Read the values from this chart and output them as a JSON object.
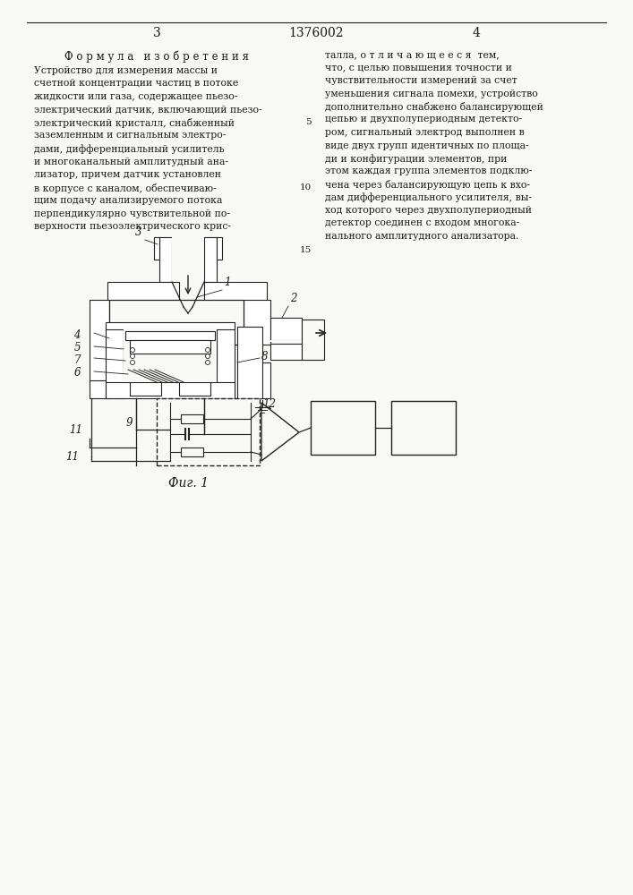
{
  "title_num_left": "3",
  "title_num_center": "1376002",
  "title_num_right": "4",
  "header_left": "Ф о р м у л а   и з о б р е т е н и я",
  "text_left_lines": [
    "Устройство для измерения массы и",
    "счетной концентрации частиц в потоке",
    "жидкости или газа, содержащее пьезо-",
    "электрический датчик, включающий пьезо-",
    "электрический кристалл, снабженный",
    "заземленным и сигнальным электро-",
    "дами, дифференциальный усилитель",
    "и многоканальный амплитудный ана-",
    "лизатор, причем датчик установлен",
    "в корпусе с каналом, обеспечиваю-",
    "щим подачу анализируемого потока",
    "перпендикулярно чувствительной по-",
    "верхности пьезоэлектрического крис-"
  ],
  "text_right_lines": [
    "талла, о т л и ч а ю щ е е с я  тем,",
    "что, с целью повышения точности и",
    "чувствительности измерений за счет",
    "уменьшения сигнала помехи, устройство",
    "дополнительно снабжено балансирующей",
    "цепью и двухполупериодным детекто-",
    "ром, сигнальный электрод выполнен в",
    "виде двух групп идентичных по площа-",
    "ди и конфигурации элементов, при",
    "этом каждая группа элементов подклю-",
    "чена через балансирующую цепь к вхо-",
    "дам дифференциального усилителя, вы-",
    "ход которого через двухполупериодный",
    "детектор соединен с входом многока-",
    "нального амплитудного анализатора."
  ],
  "fig_caption": "Фиг. 1",
  "bg_color": "#f8f8f5",
  "text_color": "#1a1a1a",
  "line_color": "#222222",
  "hatch_color": "#333333"
}
